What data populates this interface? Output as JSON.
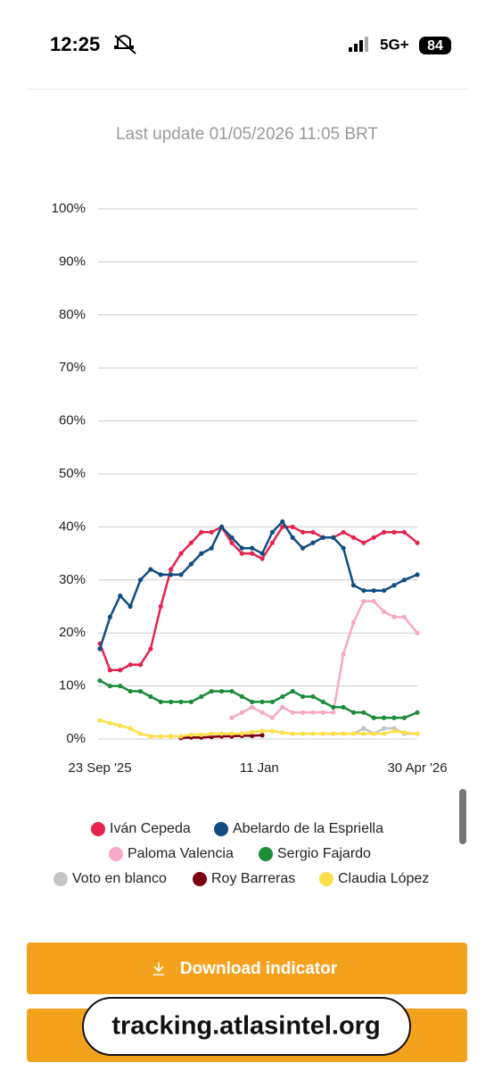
{
  "status_bar": {
    "time": "12:25",
    "network": "5G+",
    "battery": "84"
  },
  "last_update": "Last update 01/05/2026 11:05 BRT",
  "chart_data": {
    "type": "line",
    "x": [
      "2025-09-23",
      "2025-09-30",
      "2025-10-07",
      "2025-10-14",
      "2025-10-21",
      "2025-10-28",
      "2025-11-04",
      "2025-11-11",
      "2025-11-18",
      "2025-11-25",
      "2025-12-02",
      "2025-12-09",
      "2025-12-16",
      "2025-12-23",
      "2025-12-30",
      "2026-01-06",
      "2026-01-13",
      "2026-01-20",
      "2026-01-27",
      "2026-02-03",
      "2026-02-10",
      "2026-02-17",
      "2026-02-24",
      "2026-03-03",
      "2026-03-10",
      "2026-03-17",
      "2026-03-24",
      "2026-03-31",
      "2026-04-07",
      "2026-04-14",
      "2026-04-21",
      "2026-04-30"
    ],
    "xlim": [
      "2025-09-23",
      "2026-04-30"
    ],
    "xticks": [
      {
        "value": "2025-09-23",
        "label": "23 Sep '25"
      },
      {
        "value": "2026-01-11",
        "label": "11 Jan"
      },
      {
        "value": "2026-04-30",
        "label": "30 Apr '26"
      }
    ],
    "ylim": [
      0,
      100
    ],
    "yticks": [
      {
        "value": 0,
        "label": "0%"
      },
      {
        "value": 10,
        "label": "10%"
      },
      {
        "value": 20,
        "label": "20%"
      },
      {
        "value": 30,
        "label": "30%"
      },
      {
        "value": 40,
        "label": "40%"
      },
      {
        "value": 50,
        "label": "50%"
      },
      {
        "value": 60,
        "label": "60%"
      },
      {
        "value": 70,
        "label": "70%"
      },
      {
        "value": 80,
        "label": "80%"
      },
      {
        "value": 90,
        "label": "90%"
      },
      {
        "value": 100,
        "label": "100%"
      }
    ],
    "grid": true,
    "series": [
      {
        "name": "Iván Cepeda",
        "color": "#e5234d",
        "values": [
          18,
          13,
          13,
          14,
          14,
          17,
          25,
          32,
          35,
          37,
          39,
          39,
          40,
          37,
          35,
          35,
          34,
          37,
          40,
          40,
          39,
          39,
          38,
          38,
          39,
          38,
          37,
          38,
          39,
          39,
          39,
          37
        ]
      },
      {
        "name": "Abelardo de la Espriella",
        "color": "#0f4c81",
        "values": [
          17,
          23,
          27,
          25,
          30,
          32,
          31,
          31,
          31,
          33,
          35,
          36,
          40,
          38,
          36,
          36,
          35,
          39,
          41,
          38,
          36,
          37,
          38,
          38,
          36,
          29,
          28,
          28,
          28,
          29,
          30,
          31
        ]
      },
      {
        "name": "Paloma Valencia",
        "color": "#f7a8c8",
        "values": [
          null,
          null,
          null,
          null,
          null,
          null,
          null,
          null,
          null,
          null,
          null,
          null,
          null,
          4,
          5,
          6,
          5,
          4,
          6,
          5,
          5,
          5,
          5,
          5,
          16,
          22,
          26,
          26,
          24,
          23,
          23,
          20
        ]
      },
      {
        "name": "Sergio Fajardo",
        "color": "#1a8c3a",
        "values": [
          11,
          10,
          10,
          9,
          9,
          8,
          7,
          7,
          7,
          7,
          8,
          9,
          9,
          9,
          8,
          7,
          7,
          7,
          8,
          9,
          8,
          8,
          7,
          6,
          6,
          5,
          5,
          4,
          4,
          4,
          4,
          5
        ]
      },
      {
        "name": "Voto en blanco",
        "color": "#c4c4c4",
        "values": [
          null,
          null,
          null,
          null,
          null,
          null,
          null,
          null,
          null,
          null,
          null,
          null,
          null,
          null,
          null,
          null,
          null,
          null,
          null,
          null,
          null,
          null,
          1,
          1,
          1,
          1,
          2,
          1,
          2,
          2,
          1,
          1
        ]
      },
      {
        "name": "Roy Barreras",
        "color": "#7a0011",
        "values": [
          null,
          null,
          null,
          null,
          null,
          null,
          null,
          null,
          0.2,
          0.3,
          0.3,
          0.4,
          0.5,
          0.5,
          0.6,
          0.6,
          0.7,
          null,
          null,
          null,
          null,
          null,
          null,
          null,
          null,
          null,
          null,
          null,
          null,
          null,
          null,
          null
        ]
      },
      {
        "name": "Claudia López",
        "color": "#fde047",
        "values": [
          3.5,
          3,
          2.5,
          2,
          1,
          0.5,
          0.5,
          0.5,
          0.5,
          0.8,
          0.8,
          1,
          1,
          1,
          1,
          1.3,
          1.5,
          1.5,
          1.2,
          1,
          1,
          1,
          1,
          1,
          1,
          1,
          1,
          1,
          1,
          1.5,
          1.2,
          1
        ]
      }
    ]
  },
  "buttons": {
    "download": "Download indicator"
  },
  "overlay": "tracking.atlasintel.org"
}
